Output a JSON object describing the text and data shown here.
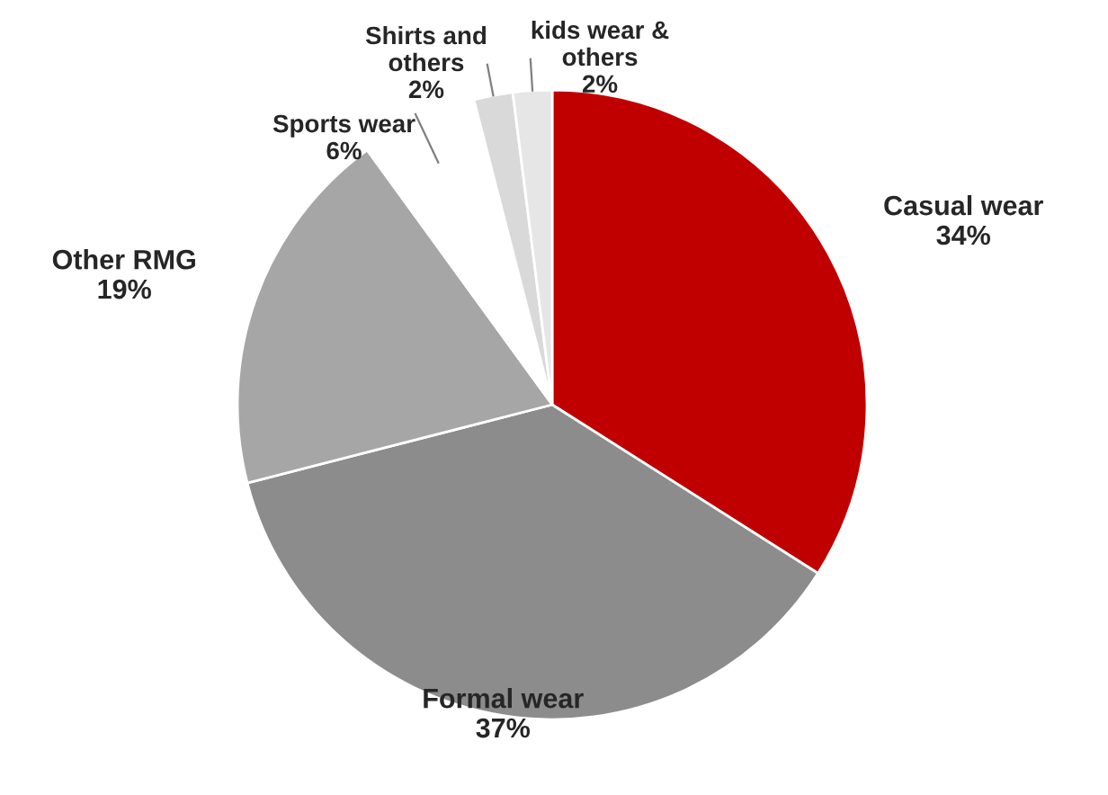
{
  "chart_data": {
    "type": "pie",
    "categories": [
      "Casual wear",
      "Formal wear",
      "Other RMG",
      "Sports wear",
      "Shirts and others",
      "kids wear & others"
    ],
    "values": [
      34,
      37,
      19,
      6,
      2,
      2
    ],
    "value_labels": [
      "34%",
      "37%",
      "19%",
      "6%",
      "2%",
      "2%"
    ],
    "colors": [
      "#c00000",
      "#8c8c8c",
      "#a6a6a6",
      "#ffffff",
      "#d9d9d9",
      "#e6e6e6"
    ]
  }
}
